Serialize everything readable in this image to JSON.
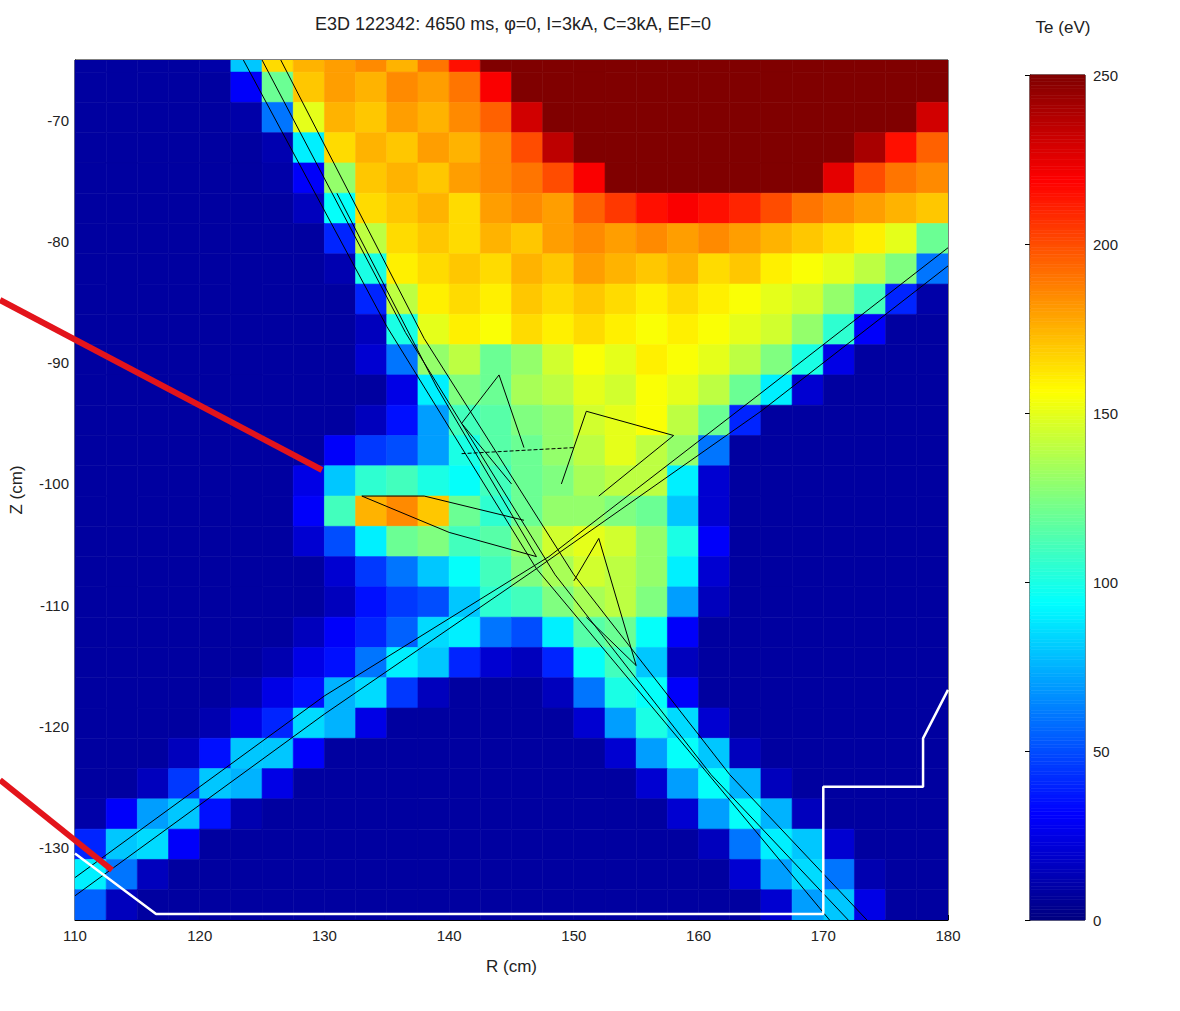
{
  "chart_data": {
    "type": "heatmap",
    "title": "E3D 122342: 4650 ms, φ=0, I=3kA, C=3kA, EF=0",
    "x_label": "R (cm)",
    "y_label": "Z (cm)",
    "xlim": [
      110,
      180
    ],
    "ylim": [
      -136,
      -65
    ],
    "xticks": [
      110,
      120,
      130,
      140,
      150,
      160,
      170,
      180
    ],
    "yticks": [
      -130,
      -120,
      -110,
      -100,
      -90,
      -80,
      -70
    ],
    "grid": false,
    "colorbar": {
      "label": "Te (eV)",
      "range": [
        0,
        250
      ],
      "ticks": [
        0,
        50,
        100,
        150,
        200,
        250
      ]
    },
    "x": [
      111.25,
      113.75,
      116.25,
      118.75,
      121.25,
      123.75,
      126.25,
      128.75,
      131.25,
      133.75,
      136.25,
      138.75,
      141.25,
      143.75,
      146.25,
      148.75,
      151.25,
      153.75,
      156.25,
      158.75,
      161.25,
      163.75,
      166.25,
      168.75,
      171.25,
      173.75,
      176.25,
      178.75
    ],
    "y": [
      -64.75,
      -67.25,
      -69.75,
      -72.25,
      -74.75,
      -77.25,
      -79.75,
      -82.25,
      -84.75,
      -87.25,
      -89.75,
      -92.25,
      -94.75,
      -97.25,
      -99.75,
      -102.25,
      -104.75,
      -107.25,
      -109.75,
      -112.25,
      -114.75,
      -117.25,
      -119.75,
      -122.25,
      -124.75,
      -127.25,
      -129.75,
      -132.25,
      -134.75
    ],
    "values": [
      [
        8,
        8,
        8,
        8,
        10,
        80,
        165,
        175,
        180,
        185,
        175,
        190,
        215,
        250,
        250,
        250,
        250,
        250,
        250,
        250,
        250,
        250,
        250,
        250,
        250,
        250,
        250,
        250
      ],
      [
        8,
        8,
        8,
        8,
        8,
        30,
        120,
        170,
        180,
        175,
        185,
        180,
        190,
        220,
        250,
        250,
        250,
        250,
        250,
        250,
        250,
        250,
        250,
        250,
        250,
        250,
        250,
        250
      ],
      [
        8,
        8,
        8,
        8,
        8,
        10,
        60,
        150,
        175,
        170,
        180,
        175,
        185,
        195,
        230,
        250,
        250,
        250,
        250,
        250,
        250,
        250,
        250,
        250,
        250,
        250,
        250,
        230
      ],
      [
        8,
        8,
        8,
        8,
        8,
        8,
        12,
        90,
        165,
        175,
        170,
        180,
        175,
        185,
        200,
        235,
        250,
        250,
        250,
        250,
        250,
        250,
        250,
        250,
        250,
        240,
        215,
        195
      ],
      [
        8,
        8,
        8,
        8,
        8,
        8,
        10,
        30,
        130,
        170,
        175,
        170,
        180,
        185,
        190,
        200,
        220,
        250,
        250,
        250,
        250,
        250,
        250,
        250,
        225,
        200,
        190,
        185
      ],
      [
        8,
        8,
        8,
        8,
        8,
        8,
        8,
        15,
        95,
        165,
        170,
        175,
        165,
        180,
        185,
        180,
        195,
        205,
        215,
        220,
        215,
        210,
        200,
        190,
        185,
        180,
        175,
        170
      ],
      [
        8,
        8,
        8,
        8,
        8,
        8,
        8,
        8,
        40,
        140,
        165,
        170,
        165,
        175,
        170,
        180,
        185,
        180,
        185,
        180,
        185,
        180,
        175,
        170,
        165,
        160,
        150,
        120
      ],
      [
        8,
        8,
        8,
        8,
        8,
        8,
        8,
        8,
        12,
        100,
        160,
        165,
        170,
        165,
        175,
        170,
        180,
        175,
        170,
        175,
        165,
        170,
        160,
        155,
        150,
        140,
        125,
        60
      ],
      [
        8,
        8,
        8,
        8,
        8,
        8,
        8,
        8,
        8,
        40,
        140,
        160,
        165,
        160,
        170,
        165,
        170,
        165,
        160,
        165,
        160,
        155,
        150,
        145,
        130,
        110,
        40,
        10
      ],
      [
        8,
        8,
        8,
        8,
        8,
        8,
        8,
        8,
        8,
        15,
        100,
        150,
        160,
        155,
        165,
        160,
        165,
        160,
        155,
        160,
        155,
        150,
        145,
        130,
        105,
        30,
        8,
        8
      ],
      [
        8,
        8,
        8,
        8,
        8,
        8,
        8,
        8,
        8,
        20,
        60,
        130,
        140,
        120,
        130,
        145,
        155,
        150,
        160,
        155,
        150,
        140,
        125,
        100,
        25,
        8,
        8,
        8
      ],
      [
        8,
        8,
        8,
        8,
        8,
        8,
        8,
        8,
        8,
        8,
        25,
        90,
        125,
        120,
        135,
        140,
        150,
        145,
        155,
        150,
        140,
        120,
        90,
        20,
        8,
        8,
        8,
        8
      ],
      [
        8,
        8,
        8,
        8,
        8,
        8,
        8,
        8,
        8,
        15,
        35,
        70,
        110,
        115,
        125,
        130,
        145,
        150,
        155,
        140,
        120,
        40,
        8,
        8,
        8,
        8,
        8,
        8
      ],
      [
        8,
        8,
        8,
        8,
        8,
        8,
        8,
        8,
        30,
        45,
        50,
        70,
        100,
        115,
        120,
        130,
        140,
        150,
        140,
        130,
        60,
        8,
        8,
        8,
        8,
        8,
        8,
        8
      ],
      [
        8,
        8,
        8,
        8,
        8,
        8,
        8,
        25,
        80,
        105,
        110,
        100,
        95,
        110,
        120,
        125,
        135,
        140,
        140,
        90,
        20,
        8,
        8,
        8,
        8,
        8,
        8,
        8
      ],
      [
        8,
        8,
        8,
        8,
        8,
        8,
        8,
        30,
        110,
        175,
        185,
        170,
        120,
        105,
        120,
        130,
        130,
        125,
        120,
        80,
        20,
        8,
        8,
        8,
        8,
        8,
        8,
        8
      ],
      [
        8,
        8,
        8,
        8,
        8,
        8,
        8,
        20,
        50,
        90,
        120,
        125,
        110,
        115,
        130,
        145,
        150,
        145,
        130,
        100,
        30,
        8,
        8,
        8,
        8,
        8,
        8,
        8
      ],
      [
        8,
        8,
        8,
        8,
        8,
        8,
        8,
        8,
        20,
        45,
        60,
        80,
        95,
        110,
        125,
        135,
        145,
        140,
        130,
        90,
        20,
        8,
        8,
        8,
        8,
        8,
        8,
        8
      ],
      [
        8,
        8,
        8,
        8,
        8,
        8,
        8,
        8,
        15,
        35,
        45,
        50,
        80,
        105,
        110,
        125,
        135,
        140,
        125,
        70,
        15,
        8,
        8,
        8,
        8,
        8,
        8,
        8
      ],
      [
        8,
        8,
        8,
        8,
        8,
        8,
        8,
        15,
        30,
        40,
        55,
        85,
        90,
        60,
        50,
        90,
        115,
        120,
        95,
        30,
        8,
        8,
        8,
        8,
        8,
        8,
        8,
        8
      ],
      [
        8,
        8,
        8,
        8,
        8,
        8,
        12,
        25,
        35,
        60,
        90,
        80,
        40,
        20,
        15,
        40,
        95,
        110,
        80,
        15,
        8,
        8,
        8,
        8,
        8,
        8,
        8,
        8
      ],
      [
        8,
        8,
        8,
        8,
        8,
        12,
        25,
        35,
        75,
        85,
        45,
        15,
        8,
        8,
        8,
        15,
        60,
        100,
        95,
        30,
        8,
        8,
        8,
        8,
        8,
        8,
        8,
        8
      ],
      [
        8,
        8,
        8,
        8,
        12,
        25,
        40,
        85,
        75,
        25,
        8,
        8,
        8,
        8,
        8,
        8,
        20,
        70,
        100,
        85,
        20,
        8,
        8,
        8,
        8,
        8,
        8,
        8
      ],
      [
        8,
        8,
        8,
        15,
        35,
        80,
        80,
        30,
        8,
        8,
        8,
        8,
        8,
        8,
        8,
        8,
        8,
        20,
        70,
        95,
        80,
        15,
        8,
        8,
        8,
        8,
        8,
        8
      ],
      [
        8,
        8,
        15,
        45,
        80,
        75,
        25,
        8,
        8,
        8,
        8,
        8,
        8,
        8,
        8,
        8,
        8,
        8,
        20,
        70,
        95,
        75,
        15,
        8,
        8,
        8,
        8,
        8
      ],
      [
        10,
        30,
        70,
        80,
        35,
        12,
        8,
        8,
        8,
        8,
        8,
        8,
        8,
        8,
        8,
        8,
        8,
        8,
        8,
        20,
        70,
        95,
        75,
        15,
        8,
        8,
        8,
        8
      ],
      [
        40,
        80,
        85,
        30,
        8,
        8,
        8,
        8,
        8,
        8,
        8,
        8,
        8,
        8,
        8,
        8,
        8,
        8,
        8,
        8,
        15,
        60,
        90,
        80,
        20,
        8,
        8,
        8
      ],
      [
        90,
        60,
        15,
        8,
        8,
        8,
        8,
        8,
        8,
        8,
        8,
        8,
        8,
        8,
        8,
        8,
        8,
        8,
        8,
        8,
        8,
        20,
        70,
        85,
        60,
        12,
        8,
        8
      ],
      [
        55,
        15,
        8,
        8,
        8,
        8,
        8,
        8,
        8,
        8,
        8,
        8,
        8,
        8,
        8,
        8,
        8,
        8,
        8,
        8,
        8,
        8,
        20,
        70,
        80,
        25,
        8,
        8
      ]
    ],
    "contours": [
      {
        "x": [
          123.5,
          135,
          147,
          160,
          170.5
        ],
        "y": [
          -65,
          -87,
          -107,
          -123,
          -136
        ],
        "color": "#000000",
        "line_style": "solid"
      },
      {
        "x": [
          125,
          136.5,
          148.5,
          161,
          172
        ],
        "y": [
          -65,
          -87.5,
          -107.5,
          -124,
          -136
        ],
        "color": "#000000",
        "line_style": "solid"
      },
      {
        "x": [
          126.5,
          138,
          150,
          162.5,
          173.5
        ],
        "y": [
          -65,
          -88,
          -107.5,
          -124,
          -136
        ],
        "color": "#000000",
        "line_style": "solid"
      },
      {
        "x": [
          110,
          130,
          147,
          165,
          180
        ],
        "y": [
          -134,
          -119,
          -107,
          -94,
          -82
        ],
        "color": "#000000",
        "line_style": "solid"
      },
      {
        "x": [
          110,
          130,
          148,
          165,
          180
        ],
        "y": [
          -132.5,
          -117.5,
          -106,
          -92.5,
          -80.5
        ],
        "color": "#000000",
        "line_style": "solid"
      },
      {
        "x": [
          131,
          139,
          147
        ],
        "y": [
          -76,
          -92,
          -106
        ],
        "color": "#000000",
        "line_style": "solid"
      },
      {
        "x": [
          146,
          138,
          133,
          140,
          147
        ],
        "y": [
          -103,
          -101,
          -101,
          -104,
          -106
        ],
        "color": "#000000",
        "line_style": "solid"
      },
      {
        "x": [
          146,
          144,
          141,
          145
        ],
        "y": [
          -97,
          -91,
          -95,
          -100
        ],
        "color": "#000000",
        "line_style": "solid"
      },
      {
        "x": [
          149,
          151,
          158,
          152
        ],
        "y": [
          -100,
          -94,
          -96,
          -101
        ],
        "color": "#000000",
        "line_style": "solid"
      },
      {
        "x": [
          150,
          152,
          155,
          151
        ],
        "y": [
          -108,
          -104.5,
          -115,
          -111
        ],
        "color": "#000000",
        "line_style": "solid"
      },
      {
        "x": [
          141,
          150
        ],
        "y": [
          -97.5,
          -97
        ],
        "color": "#000000",
        "line_style": "dashed"
      }
    ],
    "wall": {
      "x": [
        110,
        116.5,
        170,
        170,
        178,
        178,
        180
      ],
      "y": [
        -130.5,
        -135.5,
        -135.5,
        -125,
        -125,
        -121,
        -117
      ],
      "color": "#ffffff"
    }
  }
}
